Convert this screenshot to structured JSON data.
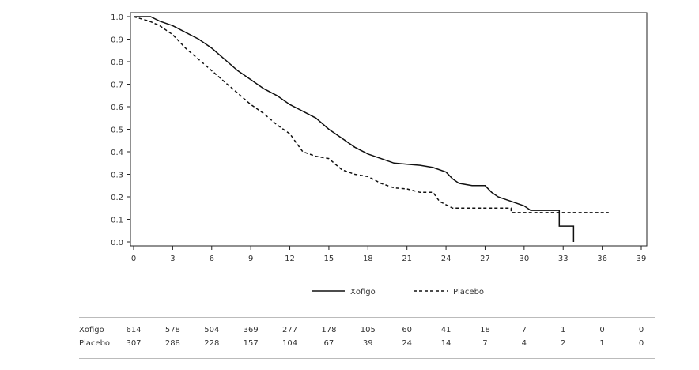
{
  "chart_data": {
    "type": "line",
    "xlabel": "",
    "ylabel": "",
    "xlim": [
      0,
      39
    ],
    "ylim": [
      0,
      1.0
    ],
    "x_ticks": [
      "0",
      "3",
      "6",
      "9",
      "12",
      "15",
      "18",
      "21",
      "24",
      "27",
      "30",
      "33",
      "36",
      "39"
    ],
    "y_ticks": [
      "0.0",
      "0.1",
      "0.2",
      "0.3",
      "0.4",
      "0.5",
      "0.6",
      "0.7",
      "0.8",
      "0.9",
      "1.0"
    ],
    "legend_position": "bottom",
    "series": [
      {
        "name": "Xofigo",
        "style": "solid",
        "color": "#111111",
        "points": [
          [
            0,
            1.0
          ],
          [
            1.3,
            1.0
          ],
          [
            2,
            0.98
          ],
          [
            3,
            0.96
          ],
          [
            4,
            0.93
          ],
          [
            5,
            0.9
          ],
          [
            6,
            0.86
          ],
          [
            7,
            0.81
          ],
          [
            8,
            0.76
          ],
          [
            9,
            0.72
          ],
          [
            10,
            0.68
          ],
          [
            11,
            0.65
          ],
          [
            12,
            0.61
          ],
          [
            13,
            0.58
          ],
          [
            14,
            0.55
          ],
          [
            15,
            0.5
          ],
          [
            16,
            0.46
          ],
          [
            17,
            0.42
          ],
          [
            18,
            0.39
          ],
          [
            19,
            0.37
          ],
          [
            20,
            0.35
          ],
          [
            21,
            0.345
          ],
          [
            22,
            0.34
          ],
          [
            23,
            0.33
          ],
          [
            24,
            0.31
          ],
          [
            24.5,
            0.28
          ],
          [
            25,
            0.26
          ],
          [
            26,
            0.25
          ],
          [
            27,
            0.25
          ],
          [
            27.5,
            0.22
          ],
          [
            28,
            0.2
          ],
          [
            29,
            0.18
          ],
          [
            30,
            0.16
          ],
          [
            30.5,
            0.14
          ],
          [
            32.7,
            0.14
          ],
          [
            32.7,
            0.07
          ],
          [
            33.8,
            0.07
          ],
          [
            33.8,
            0.0
          ]
        ]
      },
      {
        "name": "Placebo",
        "style": "dashed",
        "color": "#111111",
        "points": [
          [
            0,
            1.0
          ],
          [
            1.2,
            0.98
          ],
          [
            2,
            0.96
          ],
          [
            3,
            0.92
          ],
          [
            4,
            0.86
          ],
          [
            5,
            0.81
          ],
          [
            6,
            0.76
          ],
          [
            7,
            0.71
          ],
          [
            8,
            0.66
          ],
          [
            9,
            0.61
          ],
          [
            10,
            0.57
          ],
          [
            11,
            0.52
          ],
          [
            12,
            0.48
          ],
          [
            13,
            0.4
          ],
          [
            14,
            0.38
          ],
          [
            15,
            0.37
          ],
          [
            16,
            0.32
          ],
          [
            17,
            0.3
          ],
          [
            18,
            0.29
          ],
          [
            19,
            0.26
          ],
          [
            20,
            0.24
          ],
          [
            21,
            0.235
          ],
          [
            22,
            0.22
          ],
          [
            23,
            0.22
          ],
          [
            23.5,
            0.18
          ],
          [
            24.5,
            0.15
          ],
          [
            29,
            0.15
          ],
          [
            29,
            0.13
          ],
          [
            36.5,
            0.13
          ]
        ]
      }
    ]
  },
  "risk_table": {
    "x": [
      0,
      3,
      6,
      9,
      12,
      15,
      18,
      21,
      24,
      27,
      30,
      33,
      36,
      39
    ],
    "rows": [
      {
        "name": "Xofigo",
        "values": [
          "614",
          "578",
          "504",
          "369",
          "277",
          "178",
          "105",
          "60",
          "41",
          "18",
          "7",
          "1",
          "0",
          "0"
        ]
      },
      {
        "name": "Placebo",
        "values": [
          "307",
          "288",
          "228",
          "157",
          "104",
          "67",
          "39",
          "24",
          "14",
          "7",
          "4",
          "2",
          "1",
          "0"
        ]
      }
    ]
  }
}
